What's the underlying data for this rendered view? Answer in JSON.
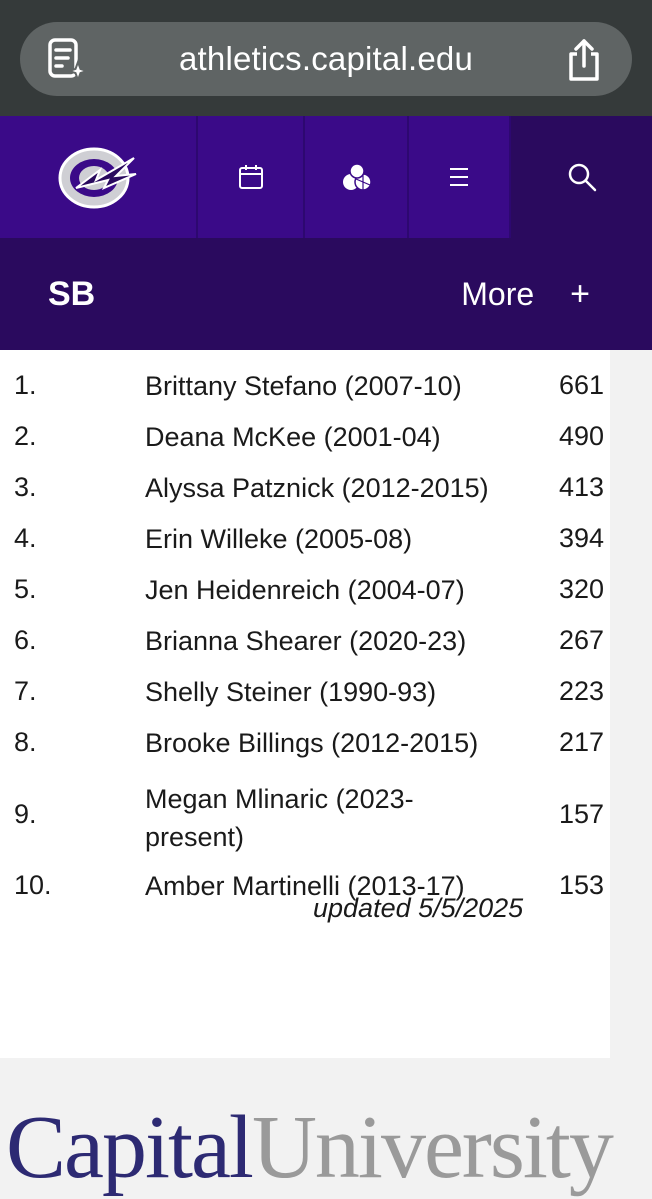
{
  "browser": {
    "url": "athletics.capital.edu"
  },
  "colors": {
    "nav_purple": "#3a0a88",
    "dark_purple": "#2a0a5e",
    "brand_navy": "#2d2a73"
  },
  "icons": [
    "reader-icon",
    "share-icon",
    "team-logo",
    "calendar-icon",
    "sports-icon",
    "menu-icon",
    "search-icon",
    "plus-icon"
  ],
  "subnav": {
    "title": "SB",
    "more": "More",
    "plus": "+"
  },
  "records": [
    {
      "rank": "1.",
      "name": "Brittany Stefano (2007-10)",
      "value": "661"
    },
    {
      "rank": "2.",
      "name": "Deana McKee (2001-04)",
      "value": "490"
    },
    {
      "rank": "3.",
      "name": "Alyssa Patznick (2012-2015)",
      "value": "413"
    },
    {
      "rank": "4.",
      "name": "Erin Willeke (2005-08)",
      "value": "394"
    },
    {
      "rank": "5.",
      "name": "Jen Heidenreich (2004-07)",
      "value": "320"
    },
    {
      "rank": "6.",
      "name": "Brianna Shearer (2020-23)",
      "value": "267"
    },
    {
      "rank": "7.",
      "name": "Shelly Steiner (1990-93)",
      "value": "223"
    },
    {
      "rank": "8.",
      "name": "Brooke Billings (2012-2015)",
      "value": "217"
    },
    {
      "rank": "9.",
      "name": "Megan Mlinaric (2023-present)",
      "value": "157"
    },
    {
      "rank": "10.",
      "name": "Amber Martinelli (2013-17)",
      "value": "153"
    }
  ],
  "updated": "updated 5/5/2025",
  "footer": {
    "word1": "Capital",
    "word2": "University"
  }
}
